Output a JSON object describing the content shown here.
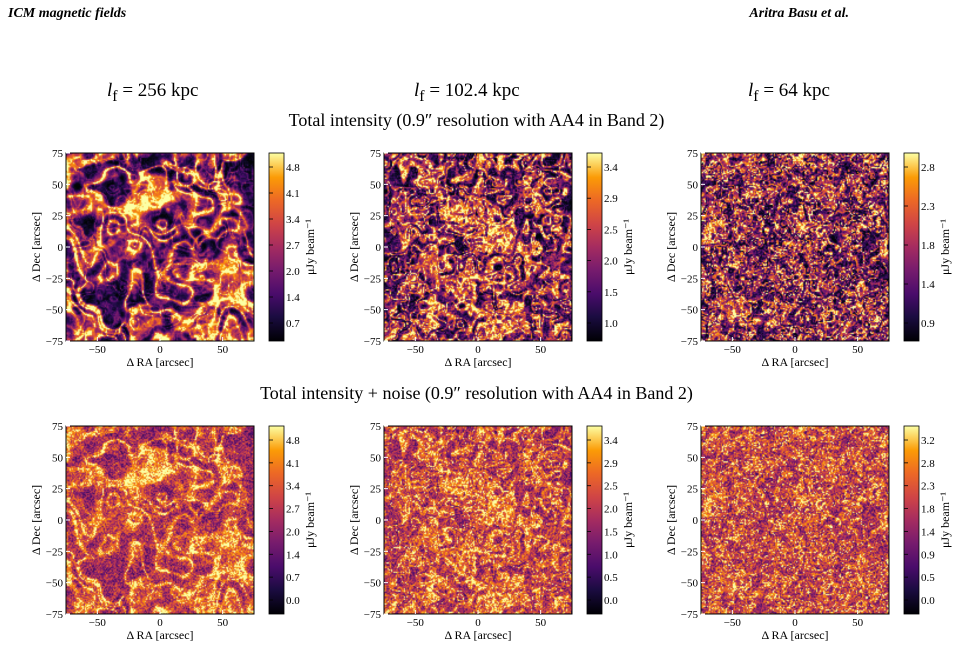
{
  "header": {
    "left": "ICM magnetic fields",
    "right": "Aritra Basu et al."
  },
  "columns": [
    {
      "var": "l",
      "sub": "f",
      "value": "= 256 kpc"
    },
    {
      "var": "l",
      "sub": "f",
      "value": "= 102.4 kpc"
    },
    {
      "var": "l",
      "sub": "f",
      "value": "= 64 kpc"
    }
  ],
  "rows": [
    {
      "title": "Total intensity (0.9″ resolution with AA4 in Band 2)"
    },
    {
      "title": "Total intensity + noise (0.9″ resolution with AA4 in Band 2)"
    }
  ],
  "chart_data": [
    {
      "type": "heatmap",
      "row": 0,
      "col": 0,
      "xlabel": "Δ RA [arcsec]",
      "ylabel": "Δ Dec [arcsec]",
      "xticks": [
        "−50",
        "0",
        "50"
      ],
      "yticks": [
        "75",
        "50",
        "25",
        "0",
        "−25",
        "−50",
        "−75"
      ],
      "colorbar_label": "μJy beam⁻¹",
      "colorbar_ticks": [
        "4.8",
        "4.1",
        "3.4",
        "2.7",
        "2.0",
        "1.4",
        "0.7"
      ],
      "scale": 64,
      "noise": false,
      "seed": 11
    },
    {
      "type": "heatmap",
      "row": 0,
      "col": 1,
      "xlabel": "Δ RA [arcsec]",
      "ylabel": "Δ Dec [arcsec]",
      "xticks": [
        "−50",
        "0",
        "50"
      ],
      "yticks": [
        "75",
        "50",
        "25",
        "0",
        "−25",
        "−50",
        "−75"
      ],
      "colorbar_label": "μJy beam⁻¹",
      "colorbar_ticks": [
        "3.4",
        "2.9",
        "2.5",
        "2.0",
        "1.5",
        "1.0"
      ],
      "scale": 26,
      "noise": false,
      "seed": 23
    },
    {
      "type": "heatmap",
      "row": 0,
      "col": 2,
      "xlabel": "Δ RA [arcsec]",
      "ylabel": "Δ Dec [arcsec]",
      "xticks": [
        "−50",
        "0",
        "50"
      ],
      "yticks": [
        "75",
        "50",
        "25",
        "0",
        "−25",
        "−50",
        "−75"
      ],
      "colorbar_label": "μJy beam⁻¹",
      "colorbar_ticks": [
        "2.8",
        "2.3",
        "1.8",
        "1.4",
        "0.9"
      ],
      "scale": 16,
      "noise": false,
      "seed": 37
    },
    {
      "type": "heatmap",
      "row": 1,
      "col": 0,
      "xlabel": "Δ RA [arcsec]",
      "ylabel": "Δ Dec [arcsec]",
      "xticks": [
        "−50",
        "0",
        "50"
      ],
      "yticks": [
        "75",
        "50",
        "25",
        "0",
        "−25",
        "−50",
        "−75"
      ],
      "colorbar_label": "μJy beam⁻¹",
      "colorbar_ticks": [
        "4.8",
        "4.1",
        "3.4",
        "2.7",
        "2.0",
        "1.4",
        "0.7",
        "0.0"
      ],
      "scale": 64,
      "noise": true,
      "seed": 11
    },
    {
      "type": "heatmap",
      "row": 1,
      "col": 1,
      "xlabel": "Δ RA [arcsec]",
      "ylabel": "Δ Dec [arcsec]",
      "xticks": [
        "−50",
        "0",
        "50"
      ],
      "yticks": [
        "75",
        "50",
        "25",
        "0",
        "−25",
        "−50",
        "−75"
      ],
      "colorbar_label": "μJy beam⁻¹",
      "colorbar_ticks": [
        "3.4",
        "2.9",
        "2.5",
        "2.0",
        "1.5",
        "1.0",
        "0.5",
        "0.0"
      ],
      "scale": 26,
      "noise": true,
      "seed": 23
    },
    {
      "type": "heatmap",
      "row": 1,
      "col": 2,
      "xlabel": "Δ RA [arcsec]",
      "ylabel": "Δ Dec [arcsec]",
      "xticks": [
        "−50",
        "0",
        "50"
      ],
      "yticks": [
        "75",
        "50",
        "25",
        "0",
        "−25",
        "−50",
        "−75"
      ],
      "colorbar_label": "μJy beam⁻¹",
      "colorbar_ticks": [
        "3.2",
        "2.8",
        "2.3",
        "1.8",
        "1.4",
        "0.9",
        "0.5",
        "0.0"
      ],
      "scale": 16,
      "noise": true,
      "seed": 37
    }
  ]
}
